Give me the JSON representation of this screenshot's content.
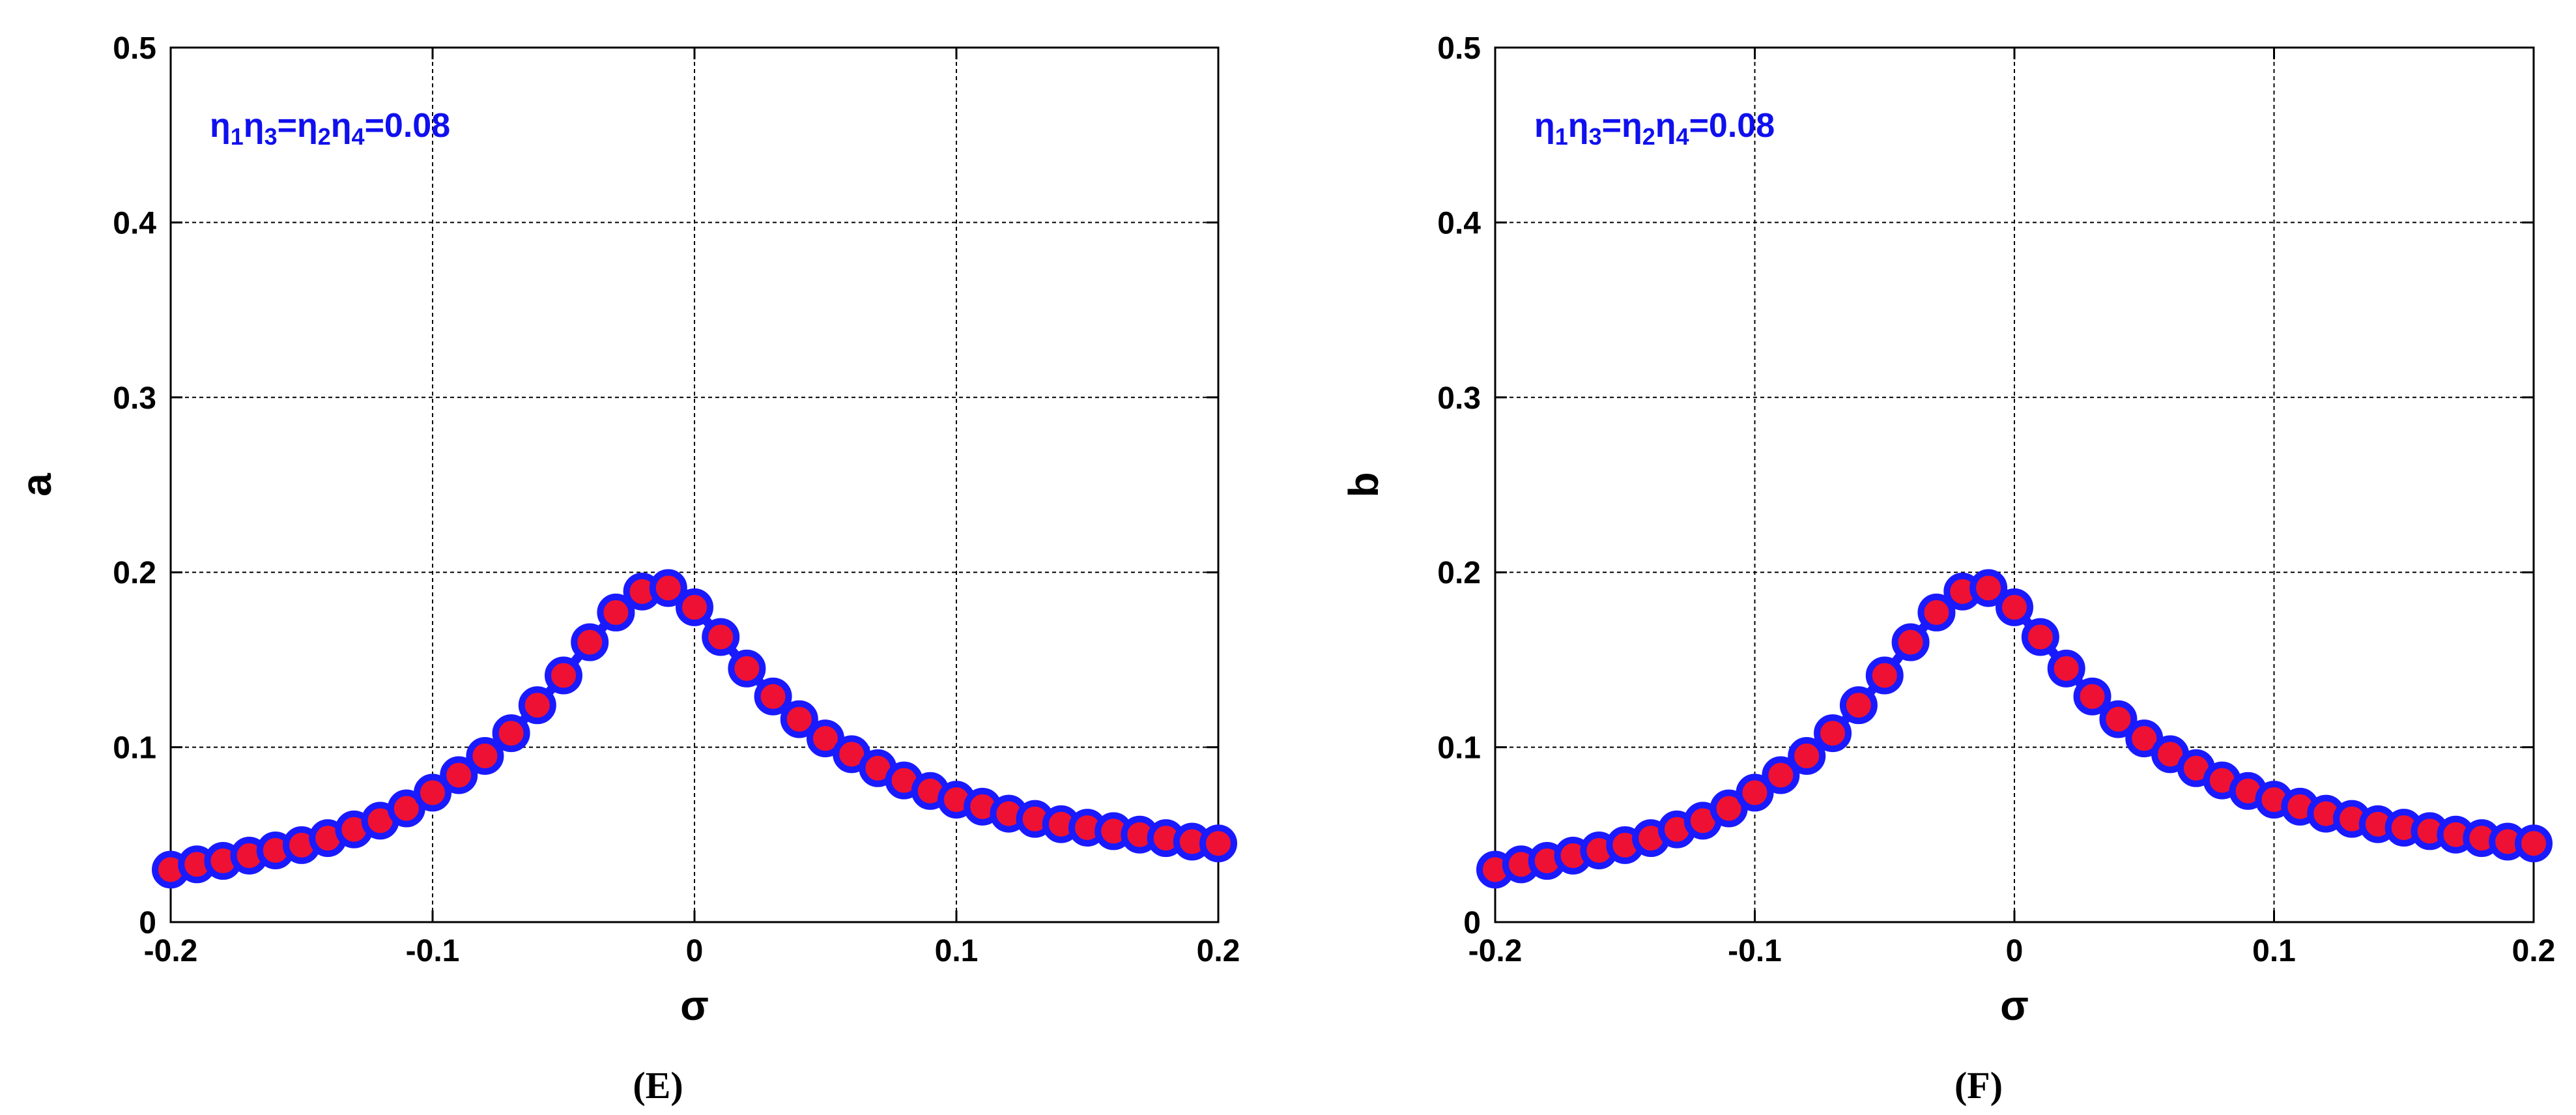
{
  "chart_data": [
    {
      "type": "line",
      "panel_label": "(E)",
      "xlabel": "σ",
      "ylabel": "a",
      "xlim": [
        -0.2,
        0.2
      ],
      "ylim": [
        0,
        0.5
      ],
      "xticks": [
        "-0.2",
        "-0.1",
        "0",
        "0.1",
        "0.2"
      ],
      "yticks": [
        "0",
        "0.1",
        "0.2",
        "0.3",
        "0.4",
        "0.5"
      ],
      "grid": true,
      "annotation": {
        "parts": [
          "η",
          "1",
          "η",
          "3",
          "=η",
          "2",
          "η",
          "4",
          "=0.08"
        ]
      },
      "colors": {
        "line": "#1a1aff",
        "marker_edge": "#1a1aff",
        "marker_face": "#ee1133"
      },
      "x": [
        -0.2,
        -0.19,
        -0.18,
        -0.17,
        -0.16,
        -0.15,
        -0.14,
        -0.13,
        -0.12,
        -0.11,
        -0.1,
        -0.09,
        -0.08,
        -0.07,
        -0.06,
        -0.05,
        -0.04,
        -0.03,
        -0.02,
        -0.01,
        0.0,
        0.01,
        0.02,
        0.03,
        0.04,
        0.05,
        0.06,
        0.07,
        0.08,
        0.09,
        0.1,
        0.11,
        0.12,
        0.13,
        0.14,
        0.15,
        0.16,
        0.17,
        0.18,
        0.19,
        0.2
      ],
      "series": [
        {
          "values": [
            0.03,
            0.033,
            0.035,
            0.038,
            0.041,
            0.044,
            0.048,
            0.053,
            0.058,
            0.065,
            0.074,
            0.084,
            0.095,
            0.108,
            0.124,
            0.141,
            0.16,
            0.177,
            0.189,
            0.191,
            0.18,
            0.163,
            0.145,
            0.129,
            0.116,
            0.105,
            0.096,
            0.088,
            0.081,
            0.075,
            0.07,
            0.066,
            0.062,
            0.059,
            0.056,
            0.054,
            0.052,
            0.05,
            0.048,
            0.046,
            0.045
          ]
        }
      ]
    },
    {
      "type": "line",
      "panel_label": "(F)",
      "xlabel": "σ",
      "ylabel": "b",
      "xlim": [
        -0.2,
        0.2
      ],
      "ylim": [
        0,
        0.5
      ],
      "xticks": [
        "-0.2",
        "-0.1",
        "0",
        "0.1",
        "0.2"
      ],
      "yticks": [
        "0",
        "0.1",
        "0.2",
        "0.3",
        "0.4",
        "0.5"
      ],
      "grid": true,
      "annotation": {
        "parts": [
          "η",
          "1",
          "η",
          "3",
          "=η",
          "2",
          "η",
          "4",
          "=0.08"
        ]
      },
      "colors": {
        "line": "#1a1aff",
        "marker_edge": "#1a1aff",
        "marker_face": "#ee1133"
      },
      "x": [
        -0.2,
        -0.19,
        -0.18,
        -0.17,
        -0.16,
        -0.15,
        -0.14,
        -0.13,
        -0.12,
        -0.11,
        -0.1,
        -0.09,
        -0.08,
        -0.07,
        -0.06,
        -0.05,
        -0.04,
        -0.03,
        -0.02,
        -0.01,
        0.0,
        0.01,
        0.02,
        0.03,
        0.04,
        0.05,
        0.06,
        0.07,
        0.08,
        0.09,
        0.1,
        0.11,
        0.12,
        0.13,
        0.14,
        0.15,
        0.16,
        0.17,
        0.18,
        0.19,
        0.2
      ],
      "series": [
        {
          "values": [
            0.03,
            0.033,
            0.035,
            0.038,
            0.041,
            0.044,
            0.048,
            0.053,
            0.058,
            0.065,
            0.074,
            0.084,
            0.095,
            0.108,
            0.124,
            0.141,
            0.16,
            0.177,
            0.189,
            0.191,
            0.18,
            0.163,
            0.145,
            0.129,
            0.116,
            0.105,
            0.096,
            0.088,
            0.081,
            0.075,
            0.07,
            0.066,
            0.062,
            0.059,
            0.056,
            0.054,
            0.052,
            0.05,
            0.048,
            0.046,
            0.045
          ]
        }
      ]
    }
  ]
}
